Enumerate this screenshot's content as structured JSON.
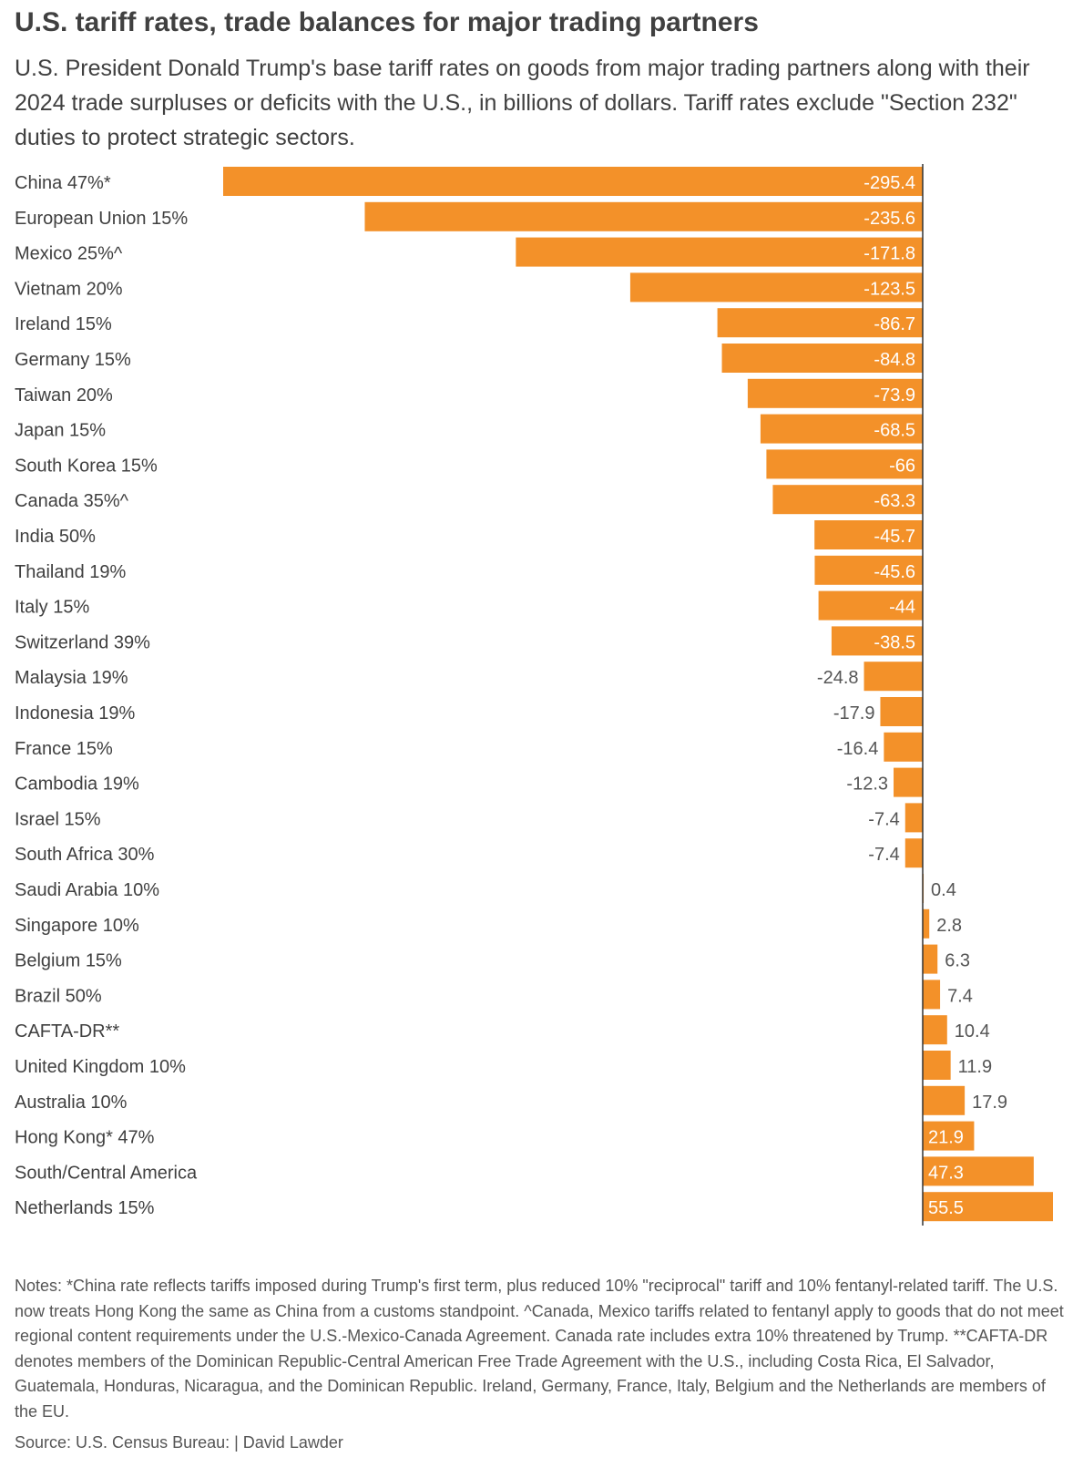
{
  "header": {
    "title": "U.S. tariff rates, trade balances for major trading partners",
    "subtitle": "U.S. President Donald Trump's base tariff rates on goods from major trading partners along with their 2024 trade surpluses or deficits with the U.S., in billions of dollars. Tariff rates exclude \"Section 232\" duties to protect strategic sectors."
  },
  "footer": {
    "notes": "Notes: *China rate reflects tariffs imposed during Trump's first term, plus reduced 10% \"reciprocal\" tariff and 10% fentanyl-related tariff. The U.S. now treats Hong Kong the same as China from a customs standpoint. ^Canada, Mexico tariffs related to fentanyl apply to goods that do not meet regional content requirements under the U.S.-Mexico-Canada Agreement. Canada rate includes extra 10% threatened by Trump. **CAFTA-DR denotes members of the Dominican Republic-Central American Free Trade Agreement with the U.S., including Costa Rica, El Salvador, Guatemala, Honduras, Nicaragua, and the Dominican Republic. Ireland, Germany, France, Italy, Belgium and the Netherlands are members of the EU.",
    "source": "Source: U.S. Census Bureau: | David Lawder"
  },
  "chart_data": {
    "type": "bar",
    "orientation": "horizontal",
    "bar_color": "#f39129",
    "categories": [
      "China 47%*",
      "European Union 15%",
      "Mexico 25%^",
      "Vietnam 20%",
      "Ireland 15%",
      "Germany 15%",
      "Taiwan 20%",
      "Japan 15%",
      "South Korea 15%",
      "Canada 35%^",
      "India 50%",
      "Thailand 19%",
      "Italy 15%",
      "Switzerland 39%",
      "Malaysia 19%",
      "Indonesia 19%",
      "France 15%",
      "Cambodia 19%",
      "Israel 15%",
      "South Africa 30%",
      "Saudi Arabia 10%",
      "Singapore 10%",
      "Belgium 15%",
      "Brazil 50%",
      "CAFTA-DR**",
      "United Kingdom 10%",
      "Australia 10%",
      "Hong Kong* 47%",
      "South/Central America",
      "Netherlands 15%"
    ],
    "values": [
      -295.4,
      -235.6,
      -171.8,
      -123.5,
      -86.7,
      -84.8,
      -73.9,
      -68.5,
      -66,
      -63.3,
      -45.7,
      -45.6,
      -44,
      -38.5,
      -24.8,
      -17.9,
      -16.4,
      -12.3,
      -7.4,
      -7.4,
      0.4,
      2.8,
      6.3,
      7.4,
      10.4,
      11.9,
      17.9,
      21.9,
      47.3,
      55.5
    ],
    "value_labels": [
      "-295.4",
      "-235.6",
      "-171.8",
      "-123.5",
      "-86.7",
      "-84.8",
      "-73.9",
      "-68.5",
      "-66",
      "-63.3",
      "-45.7",
      "-45.6",
      "-44",
      "-38.5",
      "-24.8",
      "-17.9",
      "-16.4",
      "-12.3",
      "-7.4",
      "-7.4",
      "0.4",
      "2.8",
      "6.3",
      "7.4",
      "10.4",
      "11.9",
      "17.9",
      "21.9",
      "47.3",
      "55.5"
    ],
    "xlim": [
      -295.4,
      55.5
    ]
  }
}
